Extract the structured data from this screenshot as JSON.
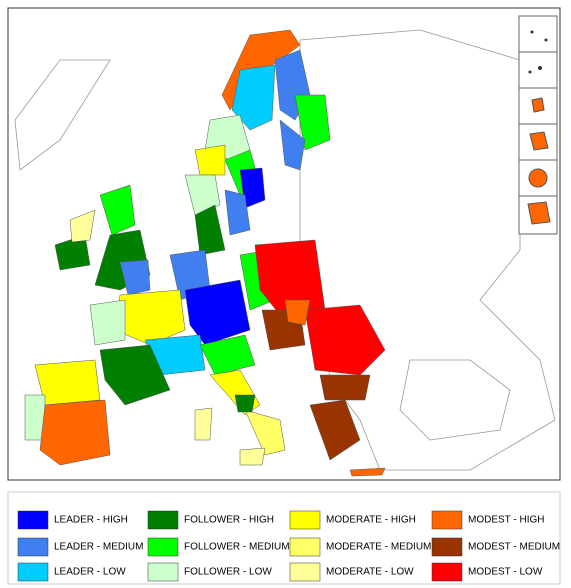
{
  "legend": [
    {
      "label": "LEADER - HIGH",
      "color": "#0000ff"
    },
    {
      "label": "LEADER - MEDIUM",
      "color": "#3f7fef"
    },
    {
      "label": "LEADER - LOW",
      "color": "#00ccff"
    },
    {
      "label": "FOLLOWER - HIGH",
      "color": "#007f00"
    },
    {
      "label": "FOLLOWER - MEDIUM",
      "color": "#00ff00"
    },
    {
      "label": "FOLLOWER - LOW",
      "color": "#ccffcc"
    },
    {
      "label": "MODERATE - HIGH",
      "color": "#ffff00"
    },
    {
      "label": "MODERATE - MEDIUM",
      "color": "#ffff66"
    },
    {
      "label": "MODERATE - LOW",
      "color": "#ffff99"
    },
    {
      "label": "MODEST - HIGH",
      "color": "#ff6600"
    },
    {
      "label": "MODEST - MEDIUM",
      "color": "#993300"
    },
    {
      "label": "MODEST - LOW",
      "color": "#ff0000"
    }
  ]
}
